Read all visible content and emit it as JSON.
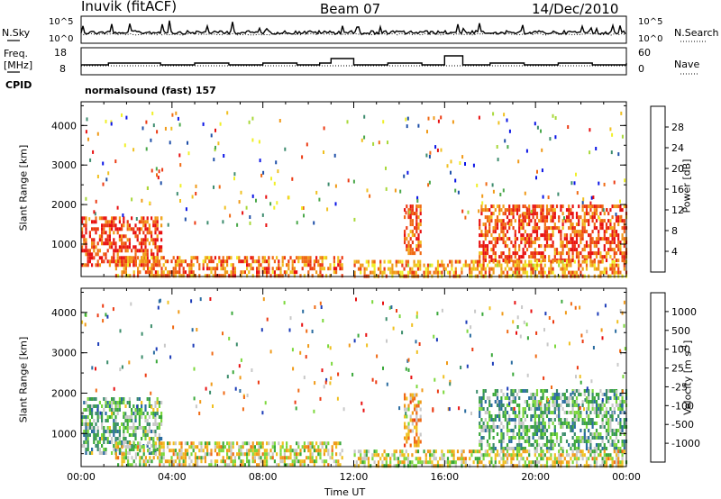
{
  "header": {
    "station": "Inuvik (fitACF)",
    "beam": "Beam 07",
    "date": "14/Dec/2010"
  },
  "top_panels": {
    "nsky_label": "N.Sky",
    "nsky_ticks": [
      "10^5",
      "10^0"
    ],
    "nsearch_label": "N.Search",
    "nsearch_ticks": [
      "10^5",
      "10^0"
    ],
    "freq_label": "Freq.",
    "freq_unit": "[MHz]",
    "freq_ticks": [
      "18",
      "8"
    ],
    "nave_label": "Nave",
    "nave_ticks": [
      "60",
      "0"
    ],
    "cpid_label": "CPID",
    "cpid_text": "normalsound (fast) 157"
  },
  "power_panel": {
    "ylabel": "Slant Range [km]",
    "yticks": [
      "4000",
      "3000",
      "2000",
      "1000"
    ],
    "colorbar_label": "Power [dB]",
    "colorbar_ticks": [
      "28",
      "24",
      "20",
      "16",
      "12",
      "8",
      "4"
    ],
    "colors": [
      "#0a14e6",
      "#1f4fa8",
      "#3d8c6e",
      "#4aa84a",
      "#a8d83a",
      "#f0f028",
      "#f0c020",
      "#f09a18",
      "#f06a14",
      "#ec3a12",
      "#e81010"
    ]
  },
  "velocity_panel": {
    "ylabel": "Slant Range [km]",
    "yticks": [
      "4000",
      "3000",
      "2000",
      "1000"
    ],
    "colorbar_label": "Velocity [m s",
    "colorbar_sup": "-1",
    "colorbar_suffix": "]",
    "colorbar_ticks": [
      "1000",
      "500",
      "100",
      "25",
      "-25",
      "-100",
      "-500",
      "-1000"
    ],
    "colors": [
      "#1c3cb8",
      "#2a6ca0",
      "#3a8c6a",
      "#3aa83a",
      "#7cd83c",
      "#c8c8c8",
      "#f0c020",
      "#f09a18",
      "#f06a14",
      "#ec3a12",
      "#e81010"
    ]
  },
  "xaxis": {
    "label": "Time UT",
    "ticks": [
      "00:00",
      "04:00",
      "08:00",
      "12:00",
      "16:00",
      "20:00",
      "00:00"
    ]
  },
  "chart_data": {
    "type": "heatmap",
    "title": "Inuvik (fitACF) Beam 07 14/Dec/2010",
    "xlabel": "Time UT",
    "ylabel": "Slant Range [km]",
    "xlim": [
      "00:00",
      "24:00"
    ],
    "ylim": [
      180,
      4600
    ],
    "panels": [
      {
        "name": "Power",
        "unit": "dB",
        "scale": [
          0,
          30
        ],
        "regions": [
          {
            "t": [
              0.0,
              3.5
            ],
            "range": [
              500,
              1700
            ],
            "value": 26
          },
          {
            "t": [
              1.5,
              11.5
            ],
            "range": [
              180,
              700
            ],
            "value": 22
          },
          {
            "t": [
              14.2,
              14.9
            ],
            "range": [
              800,
              2000
            ],
            "value": 24
          },
          {
            "t": [
              17.5,
              24.0
            ],
            "range": [
              600,
              2000
            ],
            "value": 25
          },
          {
            "t": [
              12.0,
              24.0
            ],
            "range": [
              180,
              600
            ],
            "value": 20
          }
        ]
      },
      {
        "name": "Velocity",
        "unit": "m s-1",
        "scale": [
          -1000,
          1000
        ],
        "regions": [
          {
            "t": [
              0.0,
              3.5
            ],
            "range": [
              500,
              1900
            ],
            "value": -300
          },
          {
            "t": [
              1.5,
              11.5
            ],
            "range": [
              180,
              800
            ],
            "value": 60
          },
          {
            "t": [
              14.2,
              14.9
            ],
            "range": [
              700,
              2000
            ],
            "value": 300
          },
          {
            "t": [
              17.5,
              24.0
            ],
            "range": [
              600,
              2100
            ],
            "value": -350
          },
          {
            "t": [
              12.0,
              24.0
            ],
            "range": [
              180,
              600
            ],
            "value": 40
          }
        ]
      }
    ]
  }
}
